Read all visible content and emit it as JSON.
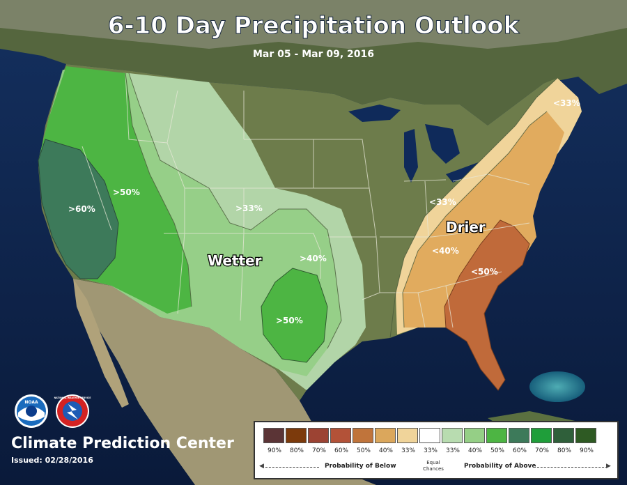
{
  "title": "6-10 Day Precipitation Outlook",
  "subtitle": "Mar 05 - Mar 09, 2016",
  "regions": {
    "wetter_label": "Wetter",
    "drier_label": "Drier",
    "w60": ">60%",
    "w50_west": ">50%",
    "w33": ">33%",
    "w40": ">40%",
    "w50_tx": ">50%",
    "d33_ne": "<33%",
    "d33": "<33%",
    "d40": "<40%",
    "d50": "<50%"
  },
  "colors": {
    "ocean": "#0f2a5a",
    "land": "#6f7f4f",
    "mexico": "#a29b78",
    "canada": "#52633c",
    "w33": "#b8dcb0",
    "w40": "#95cf86",
    "w50": "#4db543",
    "w60": "#3d7a5a",
    "d33": "#f0d49a",
    "d40": "#e1ab5e",
    "d50": "#c06a3a"
  },
  "legend": {
    "below_label": "Probability of Below",
    "equal_label_1": "Equal",
    "equal_label_2": "Chances",
    "above_label": "Probability of Above",
    "swatches": [
      "#5b3436",
      "#7c3a0c",
      "#9c4333",
      "#b35238",
      "#c0743b",
      "#dba75c",
      "#f0d49a",
      "#ffffff",
      "#b8dcb0",
      "#95cf86",
      "#4db543",
      "#3d7a5a",
      "#1f9e3a",
      "#2f5f3a",
      "#2e5a23"
    ],
    "pcts": [
      "90%",
      "80%",
      "70%",
      "60%",
      "50%",
      "40%",
      "33%",
      "33%",
      "33%",
      "40%",
      "50%",
      "60%",
      "70%",
      "80%",
      "90%"
    ]
  },
  "footer": {
    "center_name": "Climate Prediction Center",
    "issued": "Issued: 02/28/2016"
  },
  "logos": {
    "noaa_text": "NOAA",
    "nws_text": "NATIONAL WEATHER SERVICE"
  }
}
